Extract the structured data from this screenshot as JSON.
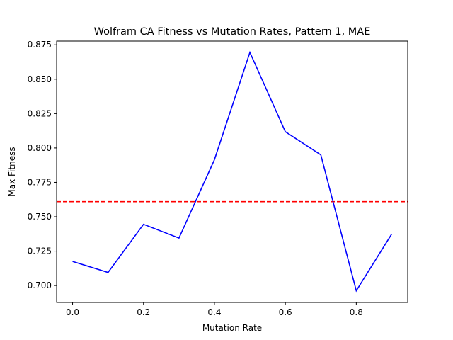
{
  "chart_data": {
    "type": "line",
    "title": "Wolfram CA Fitness vs Mutation Rates, Pattern 1, MAE",
    "xlabel": "Mutation Rate",
    "ylabel": "Max Fitness",
    "xlim": [
      -0.045,
      0.945
    ],
    "ylim": [
      0.6877,
      0.8777
    ],
    "xticks": [
      0.0,
      0.2,
      0.4,
      0.6,
      0.8
    ],
    "xtick_labels": [
      "0.0",
      "0.2",
      "0.4",
      "0.6",
      "0.8"
    ],
    "yticks": [
      0.7,
      0.725,
      0.75,
      0.775,
      0.8,
      0.825,
      0.85,
      0.875
    ],
    "ytick_labels": [
      "0.700",
      "0.725",
      "0.750",
      "0.775",
      "0.800",
      "0.825",
      "0.850",
      "0.875"
    ],
    "grid": false,
    "series": [
      {
        "color": "#0000ff",
        "style": "solid",
        "x": [
          0.0,
          0.1,
          0.2,
          0.3,
          0.4,
          0.5,
          0.6,
          0.7,
          0.8,
          0.9
        ],
        "values": [
          0.7175,
          0.7095,
          0.7445,
          0.7345,
          0.7915,
          0.8695,
          0.8118,
          0.795,
          0.6962,
          0.7375
        ]
      }
    ],
    "reference_lines": [
      {
        "orientation": "horizontal",
        "value": 0.761,
        "color": "#ff0000",
        "style": "dashed"
      }
    ]
  }
}
